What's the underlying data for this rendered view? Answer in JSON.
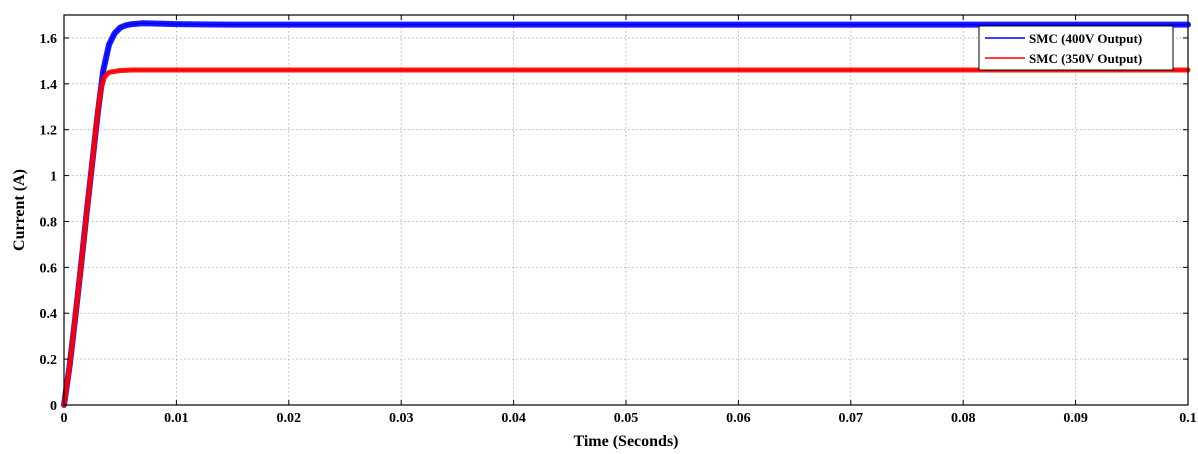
{
  "chart_data": {
    "type": "line",
    "title": "",
    "xlabel": "Time (Seconds)",
    "ylabel": "Current (A)",
    "xlim": [
      0,
      0.1
    ],
    "ylim": [
      0,
      1.7
    ],
    "xticks": [
      0,
      0.01,
      0.02,
      0.03,
      0.04,
      0.05,
      0.06,
      0.07,
      0.08,
      0.09,
      0.1
    ],
    "xtick_labels": [
      "0",
      "0.01",
      "0.02",
      "0.03",
      "0.04",
      "0.05",
      "0.06",
      "0.07",
      "0.08",
      "0.09",
      "0.1"
    ],
    "yticks": [
      0,
      0.2,
      0.4,
      0.6,
      0.8,
      1.0,
      1.2,
      1.4,
      1.6
    ],
    "ytick_labels": [
      "0",
      "0.2",
      "0.4",
      "0.6",
      "0.8",
      "1",
      "1.2",
      "1.4",
      "1.6"
    ],
    "grid": true,
    "legend_position": "top-right",
    "series": [
      {
        "name": "SMC (400V Output)",
        "color": "#0000ff",
        "x": [
          0,
          0.0005,
          0.001,
          0.0015,
          0.002,
          0.0025,
          0.003,
          0.0035,
          0.004,
          0.0045,
          0.005,
          0.0055,
          0.006,
          0.007,
          0.008,
          0.01,
          0.012,
          0.015,
          0.1
        ],
        "y": [
          0,
          0.17,
          0.38,
          0.6,
          0.83,
          1.05,
          1.27,
          1.46,
          1.57,
          1.62,
          1.645,
          1.655,
          1.66,
          1.664,
          1.663,
          1.66,
          1.659,
          1.658,
          1.658
        ]
      },
      {
        "name": "SMC (350V Output)",
        "color": "#ff0000",
        "x": [
          0,
          0.0005,
          0.001,
          0.0015,
          0.002,
          0.0025,
          0.003,
          0.0033,
          0.0036,
          0.004,
          0.005,
          0.006,
          0.008,
          0.1
        ],
        "y": [
          0,
          0.17,
          0.38,
          0.6,
          0.83,
          1.05,
          1.28,
          1.38,
          1.43,
          1.45,
          1.458,
          1.46,
          1.46,
          1.46
        ]
      }
    ]
  }
}
